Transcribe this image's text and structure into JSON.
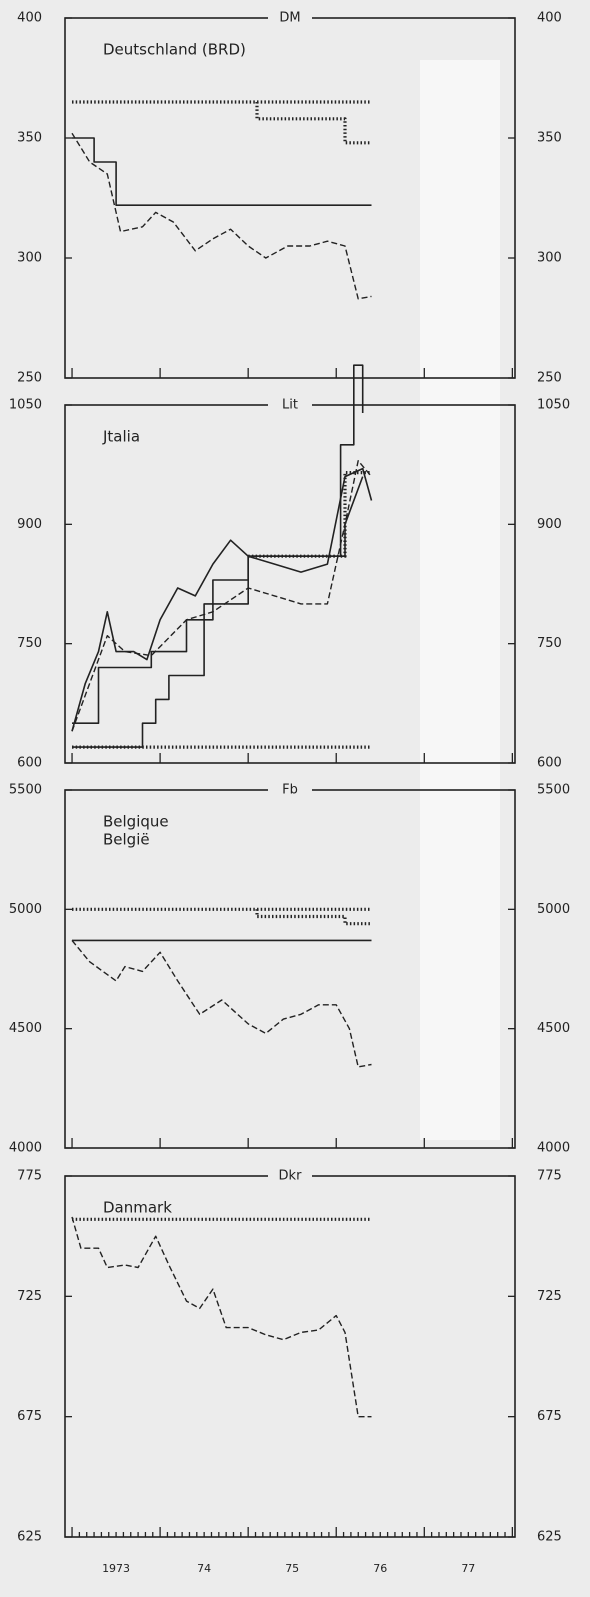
{
  "chart_data": [
    {
      "type": "line",
      "unit": "DM",
      "title": [
        "Deutschland (BRD)"
      ],
      "xlim": [
        1972.92,
        1978.03
      ],
      "xticks": [
        1973,
        1974,
        1975,
        1976,
        1977,
        1978
      ],
      "ylim": [
        250,
        400
      ],
      "yticks": [
        250,
        300,
        350,
        400
      ],
      "series": [
        {
          "style": "dotted",
          "color": "#222",
          "x": [
            1973.0,
            1976.4
          ],
          "values": [
            365,
            365
          ]
        },
        {
          "style": "dotted",
          "color": "#222",
          "x": [
            1975.1,
            1975.1,
            1976.1,
            1976.1,
            1976.4
          ],
          "values": [
            365,
            358,
            358,
            348,
            348
          ]
        },
        {
          "style": "solid",
          "color": "#222",
          "x": [
            1973.0,
            1973.25,
            1973.25,
            1973.5,
            1973.5,
            1976.4
          ],
          "values": [
            350,
            350,
            340,
            340,
            322,
            322
          ]
        },
        {
          "style": "dashed",
          "color": "#222",
          "x": [
            1973.0,
            1973.2,
            1973.4,
            1973.55,
            1973.8,
            1973.95,
            1974.15,
            1974.4,
            1974.6,
            1974.8,
            1975.0,
            1975.2,
            1975.45,
            1975.7,
            1975.9,
            1976.1,
            1976.25,
            1976.4
          ],
          "values": [
            352,
            340,
            335,
            311,
            313,
            319,
            315,
            303,
            308,
            312,
            305,
            300,
            305,
            305,
            307,
            305,
            283,
            284
          ]
        }
      ]
    },
    {
      "type": "line",
      "unit": "Lit",
      "title": [
        "Jtalia"
      ],
      "xlim": [
        1972.92,
        1978.03
      ],
      "xticks": [
        1973,
        1974,
        1975,
        1976,
        1977,
        1978
      ],
      "ylim": [
        600,
        1050
      ],
      "yticks": [
        600,
        750,
        900,
        1050
      ],
      "series": [
        {
          "style": "dotted",
          "color": "#222",
          "x": [
            1973.0,
            1976.4
          ],
          "values": [
            620,
            620
          ]
        },
        {
          "style": "dotted",
          "color": "#222",
          "x": [
            1975.0,
            1976.1,
            1976.1,
            1976.4
          ],
          "values": [
            860,
            860,
            965,
            965
          ]
        },
        {
          "style": "solid",
          "color": "#222",
          "x": [
            1973.0,
            1973.15,
            1973.3,
            1973.4,
            1973.5,
            1973.7,
            1973.85,
            1974.0,
            1974.2,
            1974.4,
            1974.6,
            1974.8,
            1975.0,
            1975.3,
            1975.6,
            1975.9,
            1976.1,
            1976.3,
            1976.4
          ],
          "values": [
            640,
            700,
            740,
            790,
            740,
            740,
            730,
            780,
            820,
            810,
            850,
            880,
            860,
            850,
            840,
            850,
            960,
            970,
            930
          ]
        },
        {
          "style": "solid",
          "color": "#222",
          "x": [
            1973.0,
            1973.3,
            1973.3,
            1973.9,
            1973.9,
            1974.3,
            1974.3,
            1974.6,
            1974.6,
            1975.0,
            1975.0,
            1976.1,
            1976.1,
            1976.3
          ],
          "values": [
            650,
            650,
            720,
            720,
            740,
            740,
            780,
            780,
            830,
            830,
            860,
            860,
            900,
            960
          ]
        },
        {
          "style": "solid",
          "color": "#222",
          "x": [
            1973.0,
            1973.8,
            1973.8,
            1973.95,
            1973.95,
            1974.1,
            1974.1,
            1974.5,
            1974.5,
            1975.0,
            1975.0,
            1976.05,
            1976.05,
            1976.2,
            1976.2,
            1976.3,
            1976.3
          ],
          "values": [
            620,
            620,
            650,
            650,
            680,
            680,
            710,
            710,
            800,
            800,
            860,
            860,
            1000,
            1000,
            1100,
            1100,
            1040
          ]
        },
        {
          "style": "dashed",
          "color": "#222",
          "x": [
            1973.0,
            1973.4,
            1973.6,
            1973.9,
            1974.3,
            1974.6,
            1975.0,
            1975.3,
            1975.6,
            1975.9,
            1976.1,
            1976.25,
            1976.4
          ],
          "values": [
            640,
            760,
            740,
            735,
            780,
            790,
            820,
            810,
            800,
            800,
            900,
            980,
            960
          ]
        }
      ]
    },
    {
      "type": "line",
      "unit": "Fb",
      "title": [
        "Belgique",
        "België"
      ],
      "xlim": [
        1972.92,
        1978.03
      ],
      "xticks": [
        1973,
        1974,
        1975,
        1976,
        1977,
        1978
      ],
      "ylim": [
        4000,
        5500
      ],
      "yticks": [
        4000,
        4500,
        5000,
        5500
      ],
      "series": [
        {
          "style": "dotted",
          "color": "#222",
          "x": [
            1973.0,
            1976.4
          ],
          "values": [
            5000,
            5000
          ]
        },
        {
          "style": "dotted",
          "color": "#222",
          "x": [
            1975.1,
            1975.1,
            1976.1,
            1976.1,
            1976.4
          ],
          "values": [
            5000,
            4970,
            4970,
            4940,
            4940
          ]
        },
        {
          "style": "solid",
          "color": "#222",
          "x": [
            1973.0,
            1976.4
          ],
          "values": [
            4870,
            4870
          ]
        },
        {
          "style": "dashed",
          "color": "#222",
          "x": [
            1973.0,
            1973.2,
            1973.5,
            1973.6,
            1973.8,
            1974.0,
            1974.2,
            1974.45,
            1974.7,
            1975.0,
            1975.2,
            1975.4,
            1975.6,
            1975.8,
            1976.0,
            1976.15,
            1976.25,
            1976.4
          ],
          "values": [
            4870,
            4780,
            4700,
            4760,
            4740,
            4820,
            4700,
            4560,
            4620,
            4520,
            4480,
            4540,
            4560,
            4600,
            4600,
            4500,
            4340,
            4350
          ]
        }
      ]
    },
    {
      "type": "line",
      "unit": "Dkr",
      "title": [
        "Danmark"
      ],
      "xlim": [
        1972.92,
        1978.03
      ],
      "xticks": [
        1973,
        1974,
        1975,
        1976,
        1977,
        1978
      ],
      "xlabels": [
        {
          "value": 1973.5,
          "label": "1973"
        },
        {
          "value": 1974.5,
          "label": "74"
        },
        {
          "value": 1975.5,
          "label": "75"
        },
        {
          "value": 1976.5,
          "label": "76"
        },
        {
          "value": 1977.5,
          "label": "77"
        }
      ],
      "ylim": [
        625,
        775
      ],
      "yticks": [
        625,
        675,
        725,
        775
      ],
      "series": [
        {
          "style": "dotted",
          "color": "#222",
          "x": [
            1973.0,
            1976.4
          ],
          "values": [
            757,
            757
          ]
        },
        {
          "style": "dashed",
          "color": "#222",
          "x": [
            1973.0,
            1973.1,
            1973.3,
            1973.4,
            1973.6,
            1973.75,
            1973.95,
            1974.1,
            1974.3,
            1974.45,
            1974.6,
            1974.75,
            1975.0,
            1975.2,
            1975.4,
            1975.6,
            1975.8,
            1976.0,
            1976.1,
            1976.25,
            1976.4
          ],
          "values": [
            758,
            745,
            745,
            737,
            738,
            737,
            750,
            738,
            723,
            720,
            728,
            712,
            712,
            709,
            707,
            710,
            711,
            717,
            710,
            675,
            675
          ]
        }
      ]
    }
  ]
}
